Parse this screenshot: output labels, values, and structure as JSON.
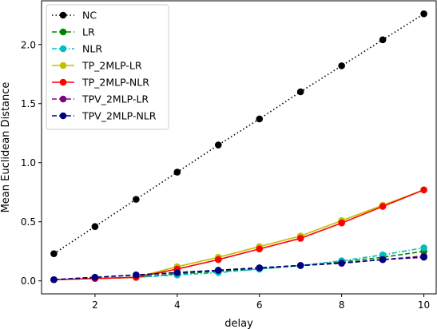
{
  "chart_data": {
    "type": "line",
    "title": "",
    "xlabel": "delay",
    "ylabel": "Mean Euclidean Distance",
    "xlim": [
      0.7,
      10.3
    ],
    "ylim": [
      -0.11,
      2.37
    ],
    "xticks": [
      2,
      4,
      6,
      8,
      10
    ],
    "yticks": [
      0.0,
      0.5,
      1.0,
      1.5,
      2.0
    ],
    "ytick_labels": [
      "0.0",
      "0.5",
      "1.0",
      "1.5",
      "2.0"
    ],
    "grid": false,
    "legend_position": "top-left",
    "x": [
      1,
      2,
      3,
      4,
      5,
      6,
      7,
      8,
      9,
      10
    ],
    "series": [
      {
        "name": "NC",
        "color": "#000000",
        "dash": "dotted",
        "values": [
          0.23,
          0.46,
          0.69,
          0.92,
          1.15,
          1.37,
          1.6,
          1.82,
          2.04,
          2.26
        ]
      },
      {
        "name": "LR",
        "color": "#008000",
        "dash": "dashed",
        "values": [
          0.01,
          0.02,
          0.03,
          0.06,
          0.08,
          0.1,
          0.13,
          0.16,
          0.2,
          0.25
        ]
      },
      {
        "name": "NLR",
        "color": "#00bfbf",
        "dash": "dashdot",
        "values": [
          0.01,
          0.02,
          0.03,
          0.05,
          0.07,
          0.1,
          0.13,
          0.17,
          0.22,
          0.28
        ]
      },
      {
        "name": "TP_2MLP-LR",
        "color": "#bfbf00",
        "dash": "solid",
        "values": [
          0.01,
          0.02,
          0.03,
          0.12,
          0.2,
          0.29,
          0.38,
          0.51,
          0.64,
          0.77
        ]
      },
      {
        "name": "TP_2MLP-NLR",
        "color": "#ff0000",
        "dash": "solid",
        "values": [
          0.01,
          0.02,
          0.03,
          0.1,
          0.18,
          0.27,
          0.36,
          0.49,
          0.63,
          0.77
        ]
      },
      {
        "name": "TPV_2MLP-LR",
        "color": "#800080",
        "dash": "dashed",
        "values": [
          0.01,
          0.03,
          0.05,
          0.07,
          0.09,
          0.11,
          0.13,
          0.15,
          0.18,
          0.21
        ]
      },
      {
        "name": "TPV_2MLP-NLR",
        "color": "#000080",
        "dash": "dashed",
        "values": [
          0.01,
          0.03,
          0.05,
          0.07,
          0.09,
          0.11,
          0.13,
          0.15,
          0.18,
          0.2
        ]
      }
    ]
  }
}
